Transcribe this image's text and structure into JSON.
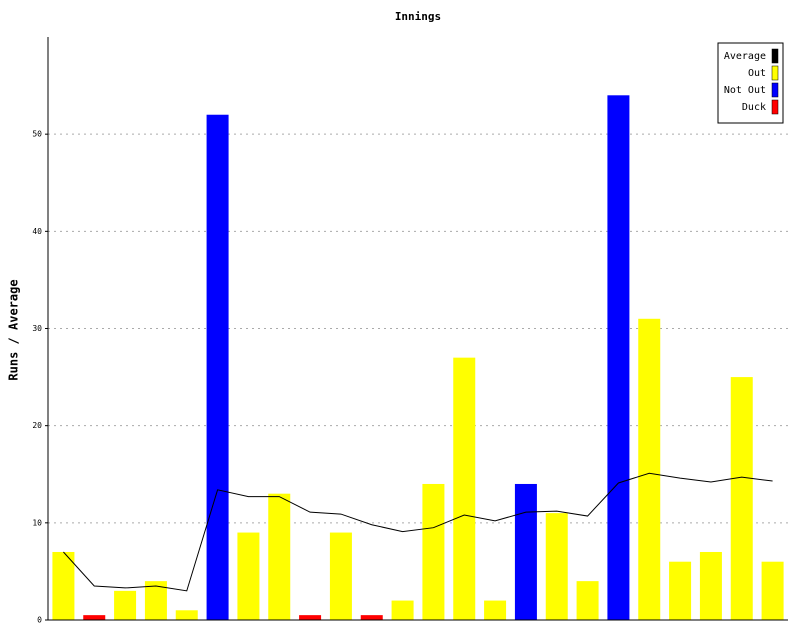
{
  "chart_data": {
    "type": "bar",
    "title": "Innings",
    "y_label": "Runs / Average",
    "categories": [
      null,
      null,
      null,
      null,
      null,
      null,
      null,
      null,
      null,
      null,
      null,
      null,
      null,
      null,
      null,
      null,
      null,
      null,
      null,
      null,
      null,
      null,
      null,
      null
    ],
    "series": [
      {
        "name": "Average",
        "type": "line",
        "color": "#000000",
        "values": [
          7,
          3.5,
          3.3,
          3.5,
          3.0,
          13.4,
          12.7,
          12.7,
          11.1,
          10.9,
          9.8,
          9.1,
          9.5,
          10.8,
          10.2,
          11.1,
          11.2,
          10.7,
          14.1,
          15.1,
          14.6,
          14.2,
          14.7,
          14.3
        ]
      },
      {
        "name": "Out",
        "color": "#ffff00",
        "values": [
          7,
          null,
          3,
          4,
          1,
          null,
          9,
          13,
          null,
          9,
          null,
          2,
          14,
          27,
          2,
          null,
          11,
          4,
          null,
          31,
          6,
          7,
          25,
          6
        ]
      },
      {
        "name": "Not Out",
        "color": "#0000ff",
        "values": [
          null,
          null,
          null,
          null,
          null,
          52,
          null,
          null,
          null,
          null,
          null,
          null,
          null,
          null,
          null,
          14,
          null,
          null,
          54,
          null,
          null,
          null,
          null,
          null
        ]
      },
      {
        "name": "Duck",
        "color": "#ff0000",
        "values": [
          null,
          0.5,
          null,
          null,
          null,
          null,
          null,
          null,
          0.5,
          null,
          0.5,
          null,
          null,
          null,
          null,
          null,
          null,
          null,
          null,
          null,
          null,
          null,
          null,
          null
        ]
      }
    ],
    "ylim": [
      0,
      60
    ],
    "yticks": [
      0,
      10,
      20,
      30,
      40,
      50
    ],
    "grid": true,
    "legend": "top-right"
  }
}
